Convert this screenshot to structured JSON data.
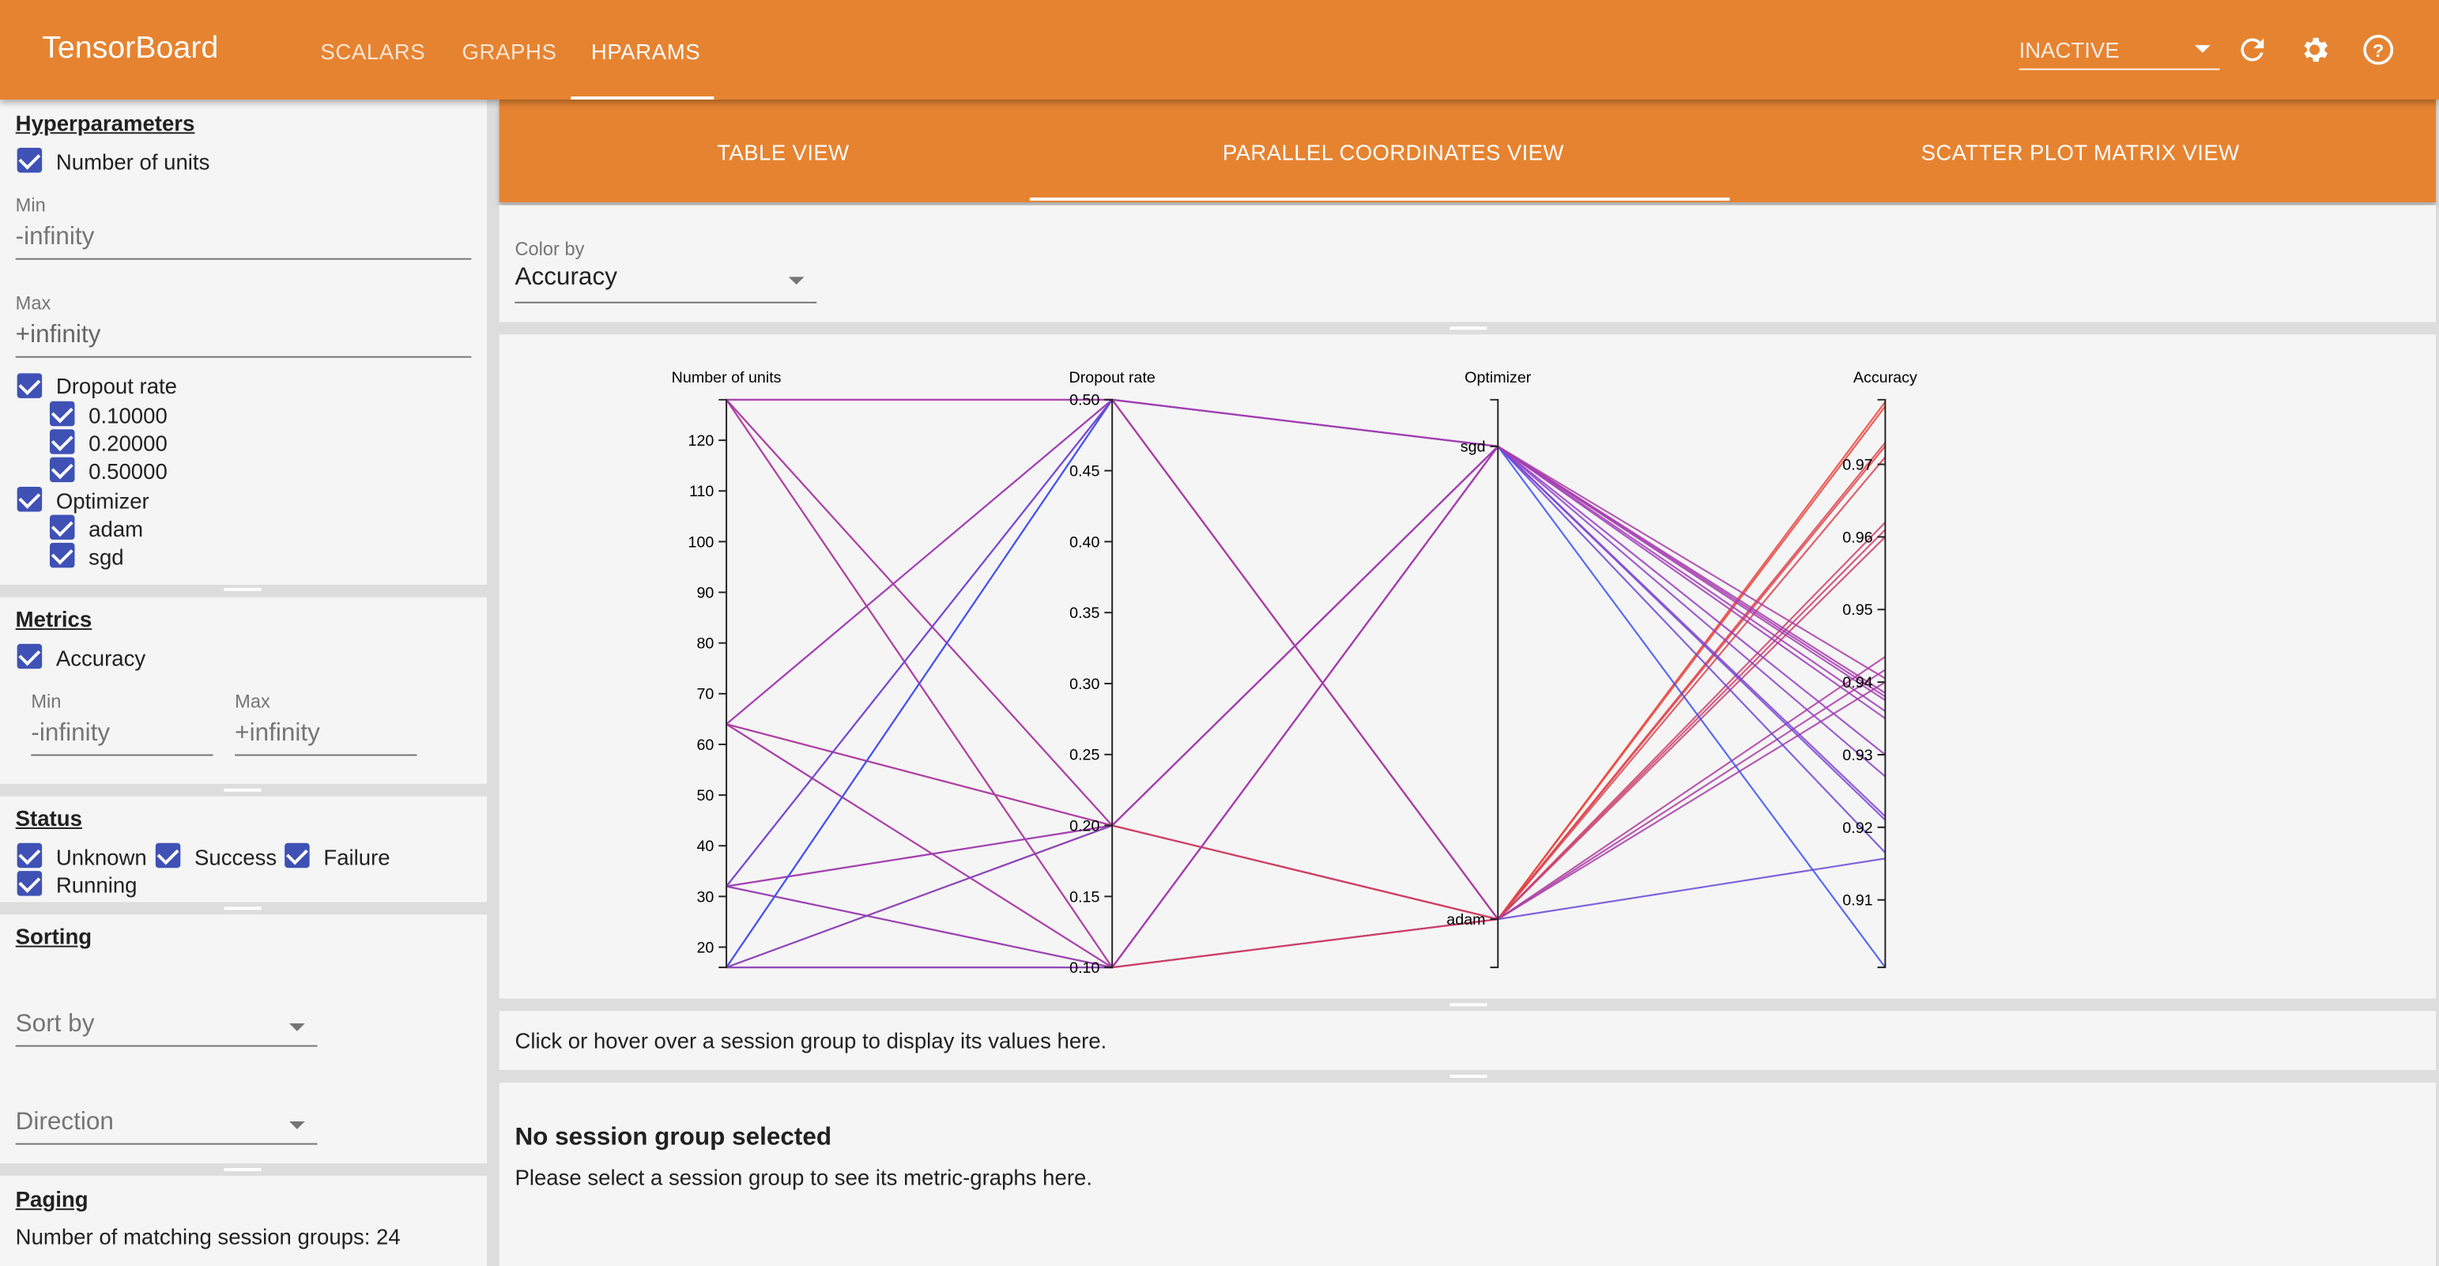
{
  "header": {
    "title": "TensorBoard",
    "tabs": [
      {
        "label": "SCALARS"
      },
      {
        "label": "GRAPHS"
      },
      {
        "label": "HPARAMS",
        "active": true
      }
    ],
    "run_selector": "INACTIVE",
    "icons": [
      "refresh-icon",
      "settings-gear-icon",
      "help-icon"
    ],
    "brand_color": "#e68331"
  },
  "sidebar": {
    "hyperparameters": {
      "title": "Hyperparameters",
      "units": {
        "label": "Number of units",
        "checked": true,
        "min_label": "Min",
        "min_value": "-infinity",
        "max_label": "Max",
        "max_value": "+infinity"
      },
      "dropout": {
        "label": "Dropout rate",
        "checked": true,
        "values": [
          "0.10000",
          "0.20000",
          "0.50000"
        ]
      },
      "optimizer": {
        "label": "Optimizer",
        "checked": true,
        "values": [
          "adam",
          "sgd"
        ]
      }
    },
    "metrics": {
      "title": "Metrics",
      "accuracy": {
        "label": "Accuracy",
        "checked": true
      },
      "min_label": "Min",
      "min_value": "-infinity",
      "max_label": "Max",
      "max_value": "+infinity"
    },
    "status": {
      "title": "Status",
      "items": [
        "Unknown",
        "Success",
        "Failure",
        "Running"
      ]
    },
    "sorting": {
      "title": "Sorting",
      "sort_by": "Sort by",
      "direction": "Direction"
    },
    "paging": {
      "title": "Paging",
      "matching": "Number of matching session groups: 24"
    }
  },
  "views": {
    "tabs": [
      "TABLE VIEW",
      "PARALLEL COORDINATES VIEW",
      "SCATTER PLOT MATRIX VIEW"
    ],
    "active": 1
  },
  "color_by": {
    "label": "Color by",
    "value": "Accuracy"
  },
  "hover_hint": "Click or hover over a session group to display its values here.",
  "selection": {
    "title": "No session group selected",
    "message": "Please select a session group to see its metric-graphs here."
  },
  "chart_data": {
    "type": "parallel-coordinates",
    "axes": [
      {
        "name": "Number of units",
        "range": [
          16,
          128
        ],
        "ticks": [
          "20",
          "30",
          "40",
          "50",
          "60",
          "70",
          "80",
          "90",
          "100",
          "110",
          "120"
        ]
      },
      {
        "name": "Dropout rate",
        "range": [
          0.1,
          0.5
        ],
        "ticks": [
          "0.10",
          "0.15",
          "0.20",
          "0.25",
          "0.30",
          "0.35",
          "0.40",
          "0.45",
          "0.50"
        ]
      },
      {
        "name": "Optimizer",
        "categories": [
          "sgd",
          "adam"
        ]
      },
      {
        "name": "Accuracy",
        "range": [
          0.9007,
          0.9789
        ],
        "ticks": [
          "0.91",
          "0.92",
          "0.93",
          "0.94",
          "0.95",
          "0.96",
          "0.97"
        ]
      }
    ],
    "color_scale": {
      "low": "#3a50f0",
      "mid": "#9b3cc0",
      "high": "#e8443a"
    },
    "sessions": [
      [
        16,
        0.1,
        "adam",
        0.9786
      ],
      [
        32,
        0.1,
        "adam",
        0.973
      ],
      [
        64,
        0.1,
        "adam",
        0.962
      ],
      [
        128,
        0.1,
        "adam",
        0.96
      ],
      [
        16,
        0.2,
        "adam",
        0.978
      ],
      [
        32,
        0.2,
        "adam",
        0.9725
      ],
      [
        64,
        0.2,
        "adam",
        0.971
      ],
      [
        128,
        0.2,
        "adam",
        0.961
      ],
      [
        16,
        0.5,
        "adam",
        0.9157
      ],
      [
        32,
        0.5,
        "adam",
        0.94
      ],
      [
        64,
        0.5,
        "adam",
        0.9417
      ],
      [
        128,
        0.5,
        "adam",
        0.9435
      ],
      [
        16,
        0.1,
        "sgd",
        0.921
      ],
      [
        32,
        0.1,
        "sgd",
        0.927
      ],
      [
        64,
        0.1,
        "sgd",
        0.936
      ],
      [
        128,
        0.1,
        "sgd",
        0.9405
      ],
      [
        16,
        0.2,
        "sgd",
        0.9215
      ],
      [
        32,
        0.2,
        "sgd",
        0.93
      ],
      [
        64,
        0.2,
        "sgd",
        0.9375
      ],
      [
        128,
        0.2,
        "sgd",
        0.938
      ],
      [
        16,
        0.5,
        "sgd",
        0.9007
      ],
      [
        32,
        0.5,
        "sgd",
        0.9165
      ],
      [
        64,
        0.5,
        "sgd",
        0.935
      ],
      [
        128,
        0.5,
        "sgd",
        0.9385
      ]
    ]
  }
}
